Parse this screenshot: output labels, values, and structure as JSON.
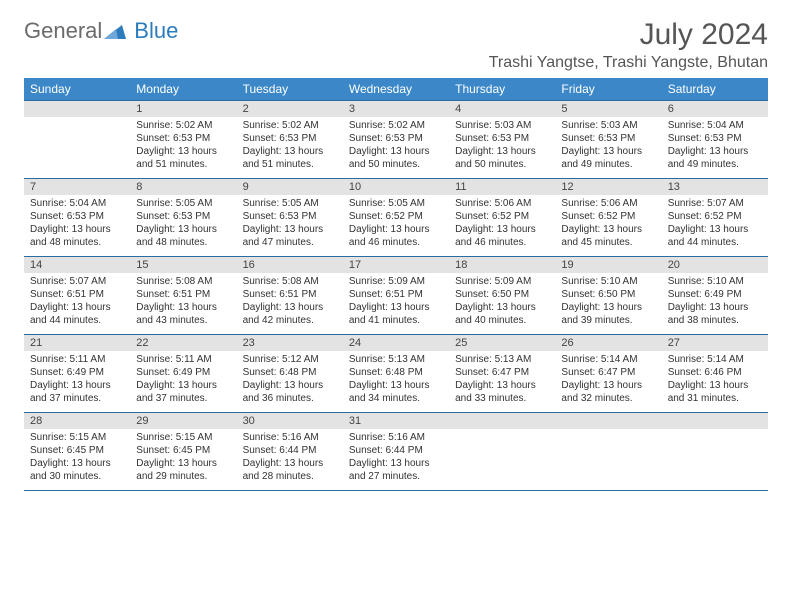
{
  "logo": {
    "textGray": "General",
    "textBlue": "Blue"
  },
  "title": "July 2024",
  "location": "Trashi Yangtse, Trashi Yangste, Bhutan",
  "colors": {
    "headerBg": "#3b87c8",
    "headerText": "#ffffff",
    "dayNumBg": "#e3e3e3",
    "borderColor": "#2b6aa3",
    "logoGray": "#6b6b6b",
    "logoBlue": "#2b7bbd"
  },
  "dayHeaders": [
    "Sunday",
    "Monday",
    "Tuesday",
    "Wednesday",
    "Thursday",
    "Friday",
    "Saturday"
  ],
  "weeks": [
    [
      null,
      {
        "n": "1",
        "sr": "5:02 AM",
        "ss": "6:53 PM",
        "dl": "13 hours and 51 minutes."
      },
      {
        "n": "2",
        "sr": "5:02 AM",
        "ss": "6:53 PM",
        "dl": "13 hours and 51 minutes."
      },
      {
        "n": "3",
        "sr": "5:02 AM",
        "ss": "6:53 PM",
        "dl": "13 hours and 50 minutes."
      },
      {
        "n": "4",
        "sr": "5:03 AM",
        "ss": "6:53 PM",
        "dl": "13 hours and 50 minutes."
      },
      {
        "n": "5",
        "sr": "5:03 AM",
        "ss": "6:53 PM",
        "dl": "13 hours and 49 minutes."
      },
      {
        "n": "6",
        "sr": "5:04 AM",
        "ss": "6:53 PM",
        "dl": "13 hours and 49 minutes."
      }
    ],
    [
      {
        "n": "7",
        "sr": "5:04 AM",
        "ss": "6:53 PM",
        "dl": "13 hours and 48 minutes."
      },
      {
        "n": "8",
        "sr": "5:05 AM",
        "ss": "6:53 PM",
        "dl": "13 hours and 48 minutes."
      },
      {
        "n": "9",
        "sr": "5:05 AM",
        "ss": "6:53 PM",
        "dl": "13 hours and 47 minutes."
      },
      {
        "n": "10",
        "sr": "5:05 AM",
        "ss": "6:52 PM",
        "dl": "13 hours and 46 minutes."
      },
      {
        "n": "11",
        "sr": "5:06 AM",
        "ss": "6:52 PM",
        "dl": "13 hours and 46 minutes."
      },
      {
        "n": "12",
        "sr": "5:06 AM",
        "ss": "6:52 PM",
        "dl": "13 hours and 45 minutes."
      },
      {
        "n": "13",
        "sr": "5:07 AM",
        "ss": "6:52 PM",
        "dl": "13 hours and 44 minutes."
      }
    ],
    [
      {
        "n": "14",
        "sr": "5:07 AM",
        "ss": "6:51 PM",
        "dl": "13 hours and 44 minutes."
      },
      {
        "n": "15",
        "sr": "5:08 AM",
        "ss": "6:51 PM",
        "dl": "13 hours and 43 minutes."
      },
      {
        "n": "16",
        "sr": "5:08 AM",
        "ss": "6:51 PM",
        "dl": "13 hours and 42 minutes."
      },
      {
        "n": "17",
        "sr": "5:09 AM",
        "ss": "6:51 PM",
        "dl": "13 hours and 41 minutes."
      },
      {
        "n": "18",
        "sr": "5:09 AM",
        "ss": "6:50 PM",
        "dl": "13 hours and 40 minutes."
      },
      {
        "n": "19",
        "sr": "5:10 AM",
        "ss": "6:50 PM",
        "dl": "13 hours and 39 minutes."
      },
      {
        "n": "20",
        "sr": "5:10 AM",
        "ss": "6:49 PM",
        "dl": "13 hours and 38 minutes."
      }
    ],
    [
      {
        "n": "21",
        "sr": "5:11 AM",
        "ss": "6:49 PM",
        "dl": "13 hours and 37 minutes."
      },
      {
        "n": "22",
        "sr": "5:11 AM",
        "ss": "6:49 PM",
        "dl": "13 hours and 37 minutes."
      },
      {
        "n": "23",
        "sr": "5:12 AM",
        "ss": "6:48 PM",
        "dl": "13 hours and 36 minutes."
      },
      {
        "n": "24",
        "sr": "5:13 AM",
        "ss": "6:48 PM",
        "dl": "13 hours and 34 minutes."
      },
      {
        "n": "25",
        "sr": "5:13 AM",
        "ss": "6:47 PM",
        "dl": "13 hours and 33 minutes."
      },
      {
        "n": "26",
        "sr": "5:14 AM",
        "ss": "6:47 PM",
        "dl": "13 hours and 32 minutes."
      },
      {
        "n": "27",
        "sr": "5:14 AM",
        "ss": "6:46 PM",
        "dl": "13 hours and 31 minutes."
      }
    ],
    [
      {
        "n": "28",
        "sr": "5:15 AM",
        "ss": "6:45 PM",
        "dl": "13 hours and 30 minutes."
      },
      {
        "n": "29",
        "sr": "5:15 AM",
        "ss": "6:45 PM",
        "dl": "13 hours and 29 minutes."
      },
      {
        "n": "30",
        "sr": "5:16 AM",
        "ss": "6:44 PM",
        "dl": "13 hours and 28 minutes."
      },
      {
        "n": "31",
        "sr": "5:16 AM",
        "ss": "6:44 PM",
        "dl": "13 hours and 27 minutes."
      },
      null,
      null,
      null
    ]
  ],
  "labels": {
    "sunrise": "Sunrise: ",
    "sunset": "Sunset: ",
    "daylight": "Daylight: "
  }
}
